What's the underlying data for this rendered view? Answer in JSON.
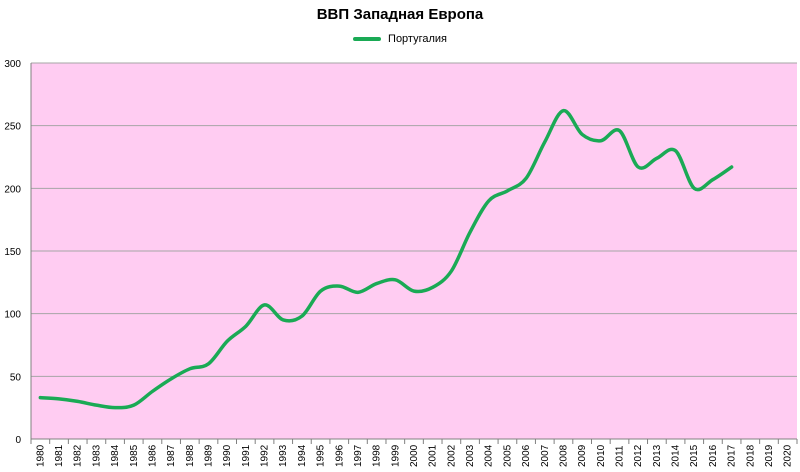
{
  "chart_data": {
    "type": "line",
    "title": "ВВП Западная Европа",
    "xlabel": "",
    "ylabel": "",
    "ylim": [
      0,
      300
    ],
    "y_ticks": [
      0,
      50,
      100,
      150,
      200,
      250,
      300
    ],
    "categories": [
      "1980",
      "1981",
      "1982",
      "1983",
      "1984",
      "1985",
      "1986",
      "1987",
      "1988",
      "1989",
      "1990",
      "1991",
      "1992",
      "1993",
      "1994",
      "1995",
      "1996",
      "1997",
      "1998",
      "1999",
      "2000",
      "2001",
      "2002",
      "2003",
      "2004",
      "2005",
      "2006",
      "2007",
      "2008",
      "2009",
      "2010",
      "2011",
      "2012",
      "2013",
      "2014",
      "2015",
      "2016",
      "2017",
      "2018",
      "2019",
      "2020"
    ],
    "series": [
      {
        "name": "Португалия",
        "color": "#1aaa55",
        "values": [
          33,
          32,
          30,
          27,
          25,
          27,
          38,
          48,
          56,
          60,
          78,
          90,
          107,
          95,
          98,
          118,
          122,
          117,
          124,
          127,
          118,
          121,
          134,
          165,
          190,
          198,
          208,
          237,
          262,
          243,
          238,
          246,
          217,
          224,
          230,
          200,
          207,
          217,
          null,
          null,
          null
        ]
      }
    ],
    "plot_background": "#ffccf2",
    "grid": true,
    "legend_position": "top"
  }
}
